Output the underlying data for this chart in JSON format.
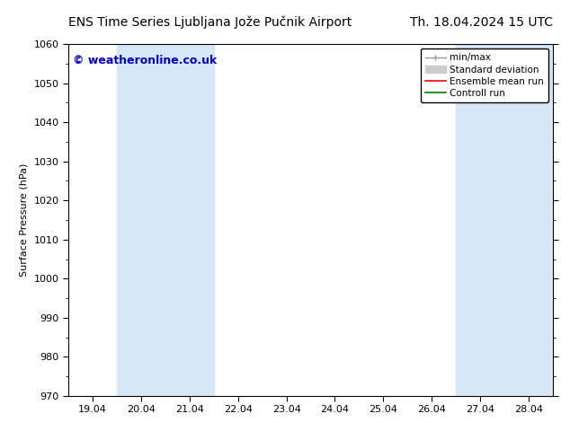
{
  "title_left": "ENS Time Series Ljubljana Jože Pučnik Airport",
  "title_right": "Th. 18.04.2024 15 UTC",
  "ylabel": "Surface Pressure (hPa)",
  "xlabel": "",
  "watermark": "© weatheronline.co.uk",
  "watermark_color": "#0000cc",
  "ylim": [
    970,
    1060
  ],
  "yticks": [
    970,
    980,
    990,
    1000,
    1010,
    1020,
    1030,
    1040,
    1050,
    1060
  ],
  "xtick_labels": [
    "19.04",
    "20.04",
    "21.04",
    "22.04",
    "23.04",
    "24.04",
    "25.04",
    "26.04",
    "27.04",
    "28.04"
  ],
  "x_values": [
    0,
    1,
    2,
    3,
    4,
    5,
    6,
    7,
    8,
    9
  ],
  "xlim": [
    -0.5,
    9.5
  ],
  "shaded_regions": [
    {
      "x_start": 0.5,
      "x_end": 2.5,
      "color": "#d6e8f7"
    },
    {
      "x_start": 7.5,
      "x_end": 9.5,
      "color": "#d6e8f7"
    }
  ],
  "background_color": "#ffffff",
  "plot_bg_color": "#ffffff",
  "border_color": "#000000",
  "title_fontsize": 10,
  "axis_label_fontsize": 8,
  "tick_fontsize": 8,
  "watermark_fontsize": 9,
  "legend_fontsize": 7.5
}
